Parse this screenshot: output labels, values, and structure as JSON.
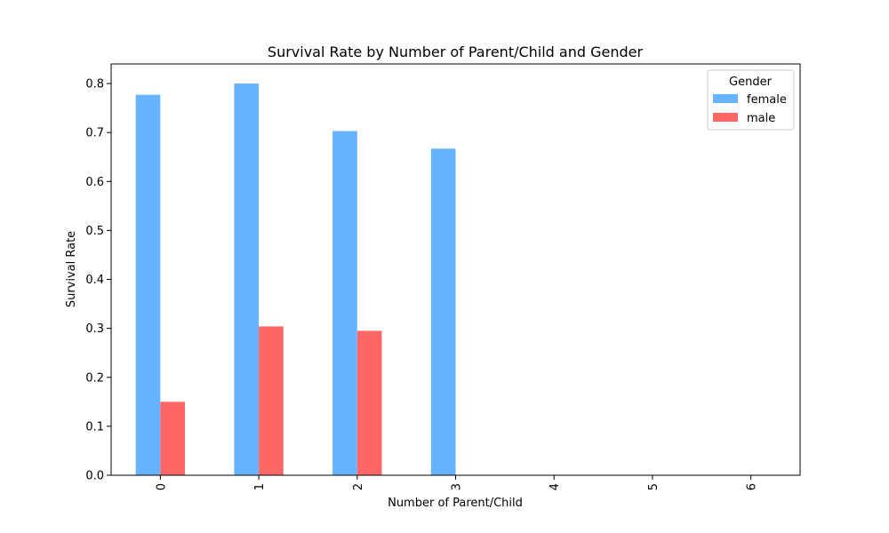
{
  "chart_data": {
    "type": "bar",
    "title": "Survival Rate by Number of Parent/Child and Gender",
    "xlabel": "Number of Parent/Child",
    "ylabel": "Survival Rate",
    "categories": [
      "0",
      "1",
      "2",
      "3",
      "4",
      "5",
      "6"
    ],
    "series": [
      {
        "name": "female",
        "color": "#66b3ff",
        "values": [
          0.777,
          0.8,
          0.703,
          0.667,
          0.0,
          0.0,
          0.0
        ]
      },
      {
        "name": "male",
        "color": "#ff6666",
        "values": [
          0.15,
          0.304,
          0.295,
          0.0,
          0.0,
          0.0,
          0.0
        ]
      }
    ],
    "ylim": [
      0,
      0.84
    ],
    "yticks": [
      "0.0",
      "0.1",
      "0.2",
      "0.3",
      "0.4",
      "0.5",
      "0.6",
      "0.7",
      "0.8"
    ],
    "grid": false,
    "legend": {
      "title": "Gender",
      "placement": "top-right"
    }
  }
}
